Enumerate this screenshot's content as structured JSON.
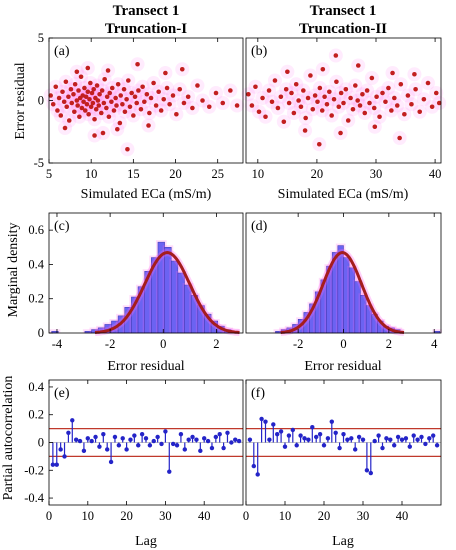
{
  "chart_data": [
    {
      "id": "a",
      "type": "scatter",
      "panel_label": "(a)",
      "title": [
        "Transect 1",
        "Truncation-I"
      ],
      "xlabel": "Simulated ECa (mS/m)",
      "ylabel": "Error residual",
      "xlim": [
        5,
        28
      ],
      "ylim": [
        -5,
        5
      ],
      "xticks": [
        "5",
        "10",
        "15",
        "20",
        "25"
      ],
      "xtick_values": [
        5,
        10,
        15,
        20,
        25
      ],
      "yticks": [
        "5",
        "0",
        "-5"
      ],
      "ytick_values": [
        5,
        0,
        -5
      ],
      "points": [
        [
          5.2,
          0.4
        ],
        [
          5.5,
          -0.3
        ],
        [
          5.8,
          1.1
        ],
        [
          6.0,
          -0.8
        ],
        [
          6.2,
          0.2
        ],
        [
          6.4,
          -1.2
        ],
        [
          6.6,
          0.7
        ],
        [
          6.8,
          -0.1
        ],
        [
          7.0,
          1.5
        ],
        [
          7.1,
          -0.5
        ],
        [
          7.3,
          0.3
        ],
        [
          7.4,
          -1.6
        ],
        [
          7.6,
          0.9
        ],
        [
          7.7,
          -0.2
        ],
        [
          7.9,
          0.5
        ],
        [
          8.0,
          -0.9
        ],
        [
          8.1,
          1.3
        ],
        [
          8.3,
          0.0
        ],
        [
          8.4,
          -0.4
        ],
        [
          8.5,
          0.8
        ],
        [
          8.6,
          -1.3
        ],
        [
          8.7,
          0.2
        ],
        [
          8.8,
          1.9
        ],
        [
          8.9,
          -0.6
        ],
        [
          9.0,
          0.4
        ],
        [
          9.1,
          -0.1
        ],
        [
          9.2,
          1.0
        ],
        [
          9.3,
          -0.8
        ],
        [
          9.4,
          0.3
        ],
        [
          9.5,
          -0.3
        ],
        [
          9.6,
          0.7
        ],
        [
          9.7,
          -1.1
        ],
        [
          9.8,
          0.1
        ],
        [
          9.9,
          1.4
        ],
        [
          10.0,
          -0.5
        ],
        [
          10.1,
          0.6
        ],
        [
          10.2,
          -0.2
        ],
        [
          10.3,
          0.9
        ],
        [
          10.4,
          -1.5
        ],
        [
          10.5,
          0.2
        ],
        [
          10.6,
          -0.7
        ],
        [
          10.7,
          1.2
        ],
        [
          10.8,
          0.0
        ],
        [
          10.9,
          -0.4
        ],
        [
          11.0,
          0.5
        ],
        [
          11.2,
          -1.0
        ],
        [
          11.3,
          0.8
        ],
        [
          11.5,
          -0.2
        ],
        [
          11.6,
          1.7
        ],
        [
          11.8,
          -0.6
        ],
        [
          11.9,
          0.3
        ],
        [
          12.1,
          -1.3
        ],
        [
          12.2,
          0.6
        ],
        [
          12.4,
          -0.1
        ],
        [
          12.5,
          1.0
        ],
        [
          12.7,
          -0.8
        ],
        [
          12.9,
          0.2
        ],
        [
          13.0,
          -0.4
        ],
        [
          13.2,
          1.3
        ],
        [
          13.4,
          -1.8
        ],
        [
          13.5,
          0.4
        ],
        [
          13.7,
          -0.3
        ],
        [
          13.9,
          0.9
        ],
        [
          14.0,
          -0.9
        ],
        [
          14.2,
          0.1
        ],
        [
          14.4,
          1.6
        ],
        [
          14.6,
          -0.5
        ],
        [
          14.8,
          0.6
        ],
        [
          15.0,
          -1.2
        ],
        [
          15.2,
          0.3
        ],
        [
          15.4,
          -0.2
        ],
        [
          15.6,
          0.8
        ],
        [
          15.9,
          -0.7
        ],
        [
          16.1,
          1.1
        ],
        [
          16.3,
          -0.1
        ],
        [
          16.6,
          0.5
        ],
        [
          16.9,
          -1.0
        ],
        [
          17.1,
          0.2
        ],
        [
          17.4,
          1.4
        ],
        [
          17.7,
          -0.4
        ],
        [
          18.0,
          0.7
        ],
        [
          18.3,
          -0.8
        ],
        [
          18.6,
          0.1
        ],
        [
          19.0,
          1.0
        ],
        [
          19.3,
          -0.3
        ],
        [
          19.7,
          0.4
        ],
        [
          20.1,
          -1.1
        ],
        [
          20.5,
          0.9
        ],
        [
          21.0,
          -0.2
        ],
        [
          21.5,
          0.3
        ],
        [
          22.0,
          -0.6
        ],
        [
          22.6,
          1.2
        ],
        [
          23.2,
          0.0
        ],
        [
          24.0,
          -0.5
        ],
        [
          24.8,
          0.6
        ],
        [
          25.6,
          -0.2
        ],
        [
          26.5,
          0.8
        ],
        [
          27.3,
          -0.4
        ],
        [
          13.1,
          -2.3
        ],
        [
          9.6,
          2.6
        ],
        [
          15.5,
          2.9
        ],
        [
          11.4,
          -2.6
        ],
        [
          6.9,
          -2.2
        ],
        [
          18.8,
          2.2
        ],
        [
          8.3,
          2.3
        ],
        [
          16.8,
          -2.0
        ],
        [
          12.0,
          2.4
        ],
        [
          10.4,
          -2.8
        ],
        [
          14.3,
          -3.9
        ],
        [
          20.8,
          2.5
        ]
      ]
    },
    {
      "id": "b",
      "type": "scatter",
      "panel_label": "(b)",
      "title": [
        "Transect 1",
        "Truncation-II"
      ],
      "xlabel": "Simulated ECa (mS/m)",
      "ylabel": "",
      "xlim": [
        8,
        41
      ],
      "ylim": [
        -5,
        5
      ],
      "xticks": [
        "10",
        "20",
        "30",
        "40"
      ],
      "xtick_values": [
        10,
        20,
        30,
        40
      ],
      "yticks": [],
      "ytick_values": [],
      "points": [
        [
          8.4,
          0.5
        ],
        [
          9.0,
          -0.4
        ],
        [
          9.6,
          1.1
        ],
        [
          10.2,
          -0.9
        ],
        [
          10.8,
          0.2
        ],
        [
          11.3,
          -1.3
        ],
        [
          11.9,
          0.8
        ],
        [
          12.4,
          -0.1
        ],
        [
          12.9,
          1.6
        ],
        [
          13.4,
          -0.6
        ],
        [
          13.9,
          0.3
        ],
        [
          14.4,
          -1.7
        ],
        [
          14.8,
          0.9
        ],
        [
          15.3,
          -0.2
        ],
        [
          15.7,
          0.6
        ],
        [
          16.1,
          -1.0
        ],
        [
          16.5,
          1.3
        ],
        [
          16.9,
          0.0
        ],
        [
          17.3,
          -0.5
        ],
        [
          17.7,
          0.8
        ],
        [
          18.1,
          -1.4
        ],
        [
          18.5,
          0.2
        ],
        [
          18.9,
          2.0
        ],
        [
          19.3,
          -0.7
        ],
        [
          19.7,
          0.4
        ],
        [
          20.1,
          -0.1
        ],
        [
          20.5,
          1.0
        ],
        [
          20.9,
          -0.8
        ],
        [
          21.3,
          0.3
        ],
        [
          21.7,
          -0.3
        ],
        [
          22.1,
          0.7
        ],
        [
          22.5,
          -1.2
        ],
        [
          22.9,
          0.1
        ],
        [
          23.3,
          1.5
        ],
        [
          23.7,
          -0.5
        ],
        [
          24.1,
          0.6
        ],
        [
          24.5,
          -0.2
        ],
        [
          24.9,
          0.9
        ],
        [
          25.3,
          -1.6
        ],
        [
          25.7,
          0.2
        ],
        [
          26.1,
          -0.7
        ],
        [
          26.5,
          1.2
        ],
        [
          26.9,
          0.0
        ],
        [
          27.3,
          -0.4
        ],
        [
          27.7,
          0.5
        ],
        [
          28.1,
          -1.0
        ],
        [
          28.5,
          0.8
        ],
        [
          28.9,
          -0.2
        ],
        [
          29.3,
          1.8
        ],
        [
          29.7,
          -0.6
        ],
        [
          30.1,
          0.3
        ],
        [
          30.6,
          -1.3
        ],
        [
          31.1,
          0.6
        ],
        [
          31.6,
          -0.1
        ],
        [
          32.1,
          1.0
        ],
        [
          32.6,
          -0.8
        ],
        [
          33.1,
          0.2
        ],
        [
          33.6,
          -0.4
        ],
        [
          34.2,
          1.3
        ],
        [
          34.8,
          -1.1
        ],
        [
          35.4,
          0.4
        ],
        [
          36.0,
          -0.3
        ],
        [
          36.7,
          0.9
        ],
        [
          37.4,
          -0.9
        ],
        [
          38.1,
          0.1
        ],
        [
          38.8,
          1.4
        ],
        [
          39.5,
          -0.5
        ],
        [
          40.2,
          0.6
        ],
        [
          40.7,
          -0.2
        ],
        [
          15.0,
          2.3
        ],
        [
          18.0,
          -2.4
        ],
        [
          21.0,
          2.5
        ],
        [
          24.0,
          -2.6
        ],
        [
          27.0,
          2.8
        ],
        [
          29.8,
          -2.1
        ],
        [
          32.8,
          2.2
        ],
        [
          23.2,
          3.6
        ],
        [
          20.4,
          -3.5
        ],
        [
          34.0,
          -3.0
        ],
        [
          36.5,
          2.1
        ]
      ]
    },
    {
      "id": "c",
      "type": "bar",
      "panel_label": "(c)",
      "xlabel": "Error residual",
      "ylabel": "Marginal density",
      "xlim": [
        -4.3,
        3.0
      ],
      "ylim": [
        0,
        0.7
      ],
      "xticks": [
        "-4",
        "-2",
        "0",
        "2"
      ],
      "xtick_values": [
        -4,
        -2,
        0,
        2
      ],
      "yticks": [
        "0.6",
        "0.4",
        "0.2",
        "0"
      ],
      "ytick_values": [
        0.6,
        0.4,
        0.2,
        0
      ],
      "bin_edges": [
        -4.2,
        -3.95,
        -3.7,
        -3.45,
        -3.2,
        -2.95,
        -2.7,
        -2.45,
        -2.2,
        -1.95,
        -1.7,
        -1.45,
        -1.2,
        -0.95,
        -0.7,
        -0.45,
        -0.2,
        0.05,
        0.3,
        0.55,
        0.8,
        1.05,
        1.3,
        1.55,
        1.8,
        2.05,
        2.3,
        2.55,
        2.8
      ],
      "values": [
        0.01,
        0,
        0,
        0,
        0,
        0.01,
        0.02,
        0.03,
        0.05,
        0.07,
        0.1,
        0.15,
        0.21,
        0.27,
        0.36,
        0.44,
        0.53,
        0.5,
        0.42,
        0.35,
        0.28,
        0.22,
        0.16,
        0.11,
        0.07,
        0.04,
        0.02,
        0.01
      ],
      "curve": {
        "mu": 0.15,
        "sigma": 0.85
      }
    },
    {
      "id": "d",
      "type": "bar",
      "panel_label": "(d)",
      "xlabel": "Error residual",
      "ylabel": "",
      "xlim": [
        -4.3,
        4.3
      ],
      "ylim": [
        0,
        0.7
      ],
      "xticks": [
        "-2",
        "0",
        "2",
        "4"
      ],
      "xtick_values": [
        -2,
        0,
        2,
        4
      ],
      "yticks": [],
      "ytick_values": [],
      "bin_edges": [
        -3.0,
        -2.75,
        -2.5,
        -2.25,
        -2.0,
        -1.75,
        -1.5,
        -1.25,
        -1.0,
        -0.75,
        -0.5,
        -0.25,
        0.0,
        0.25,
        0.5,
        0.75,
        1.0,
        1.25,
        1.5,
        1.75,
        2.0,
        2.25,
        2.5,
        2.75,
        3.0,
        3.25,
        3.5,
        3.75,
        4.0,
        4.25
      ],
      "values": [
        0.01,
        0.02,
        0.03,
        0.05,
        0.08,
        0.12,
        0.17,
        0.24,
        0.31,
        0.39,
        0.47,
        0.51,
        0.44,
        0.38,
        0.3,
        0.22,
        0.16,
        0.11,
        0.07,
        0.04,
        0.03,
        0.02,
        0,
        0,
        0,
        0,
        0,
        0,
        0.01
      ],
      "curve": {
        "mu": -0.05,
        "sigma": 0.85
      }
    },
    {
      "id": "e",
      "type": "stem",
      "panel_label": "(e)",
      "xlabel": "Lag",
      "ylabel": "Partial autocorrelation",
      "xlim": [
        0,
        50
      ],
      "ylim": [
        -0.45,
        0.45
      ],
      "xticks": [
        "0",
        "10",
        "20",
        "30",
        "40"
      ],
      "xtick_values": [
        0,
        10,
        20,
        30,
        40
      ],
      "yticks": [
        "0.4",
        "0.2",
        "0",
        "-0.2",
        "-0.4"
      ],
      "ytick_values": [
        0.4,
        0.2,
        0,
        -0.2,
        -0.4
      ],
      "bounds": [
        0.1,
        -0.1
      ],
      "values": [
        -0.16,
        -0.16,
        -0.05,
        -0.1,
        0.07,
        0.16,
        0.02,
        0.01,
        -0.06,
        0.03,
        0.01,
        0.04,
        -0.03,
        0.06,
        -0.05,
        -0.14,
        0.04,
        -0.02,
        0.03,
        -0.05,
        0.02,
        0.05,
        -0.02,
        0.06,
        0.03,
        -0.02,
        0.01,
        0.04,
        -0.01,
        0.08,
        -0.21,
        -0.01,
        -0.02,
        0.06,
        -0.05,
        0.02,
        0.04,
        0.02,
        -0.06,
        0.03,
        0.01,
        -0.04,
        0.04,
        0.06,
        -0.04,
        0.07,
        0,
        0.02,
        0.01
      ]
    },
    {
      "id": "f",
      "type": "stem",
      "panel_label": "(f)",
      "xlabel": "Lag",
      "ylabel": "",
      "xlim": [
        0,
        50
      ],
      "ylim": [
        -0.45,
        0.45
      ],
      "xticks": [
        "0",
        "10",
        "20",
        "30",
        "40"
      ],
      "xtick_values": [
        0,
        10,
        20,
        30,
        40
      ],
      "yticks": [],
      "ytick_values": [],
      "bounds": [
        0.1,
        -0.1
      ],
      "values": [
        0.02,
        -0.17,
        -0.23,
        0.17,
        0.15,
        0.02,
        0.13,
        0.06,
        0.08,
        -0.03,
        0.05,
        0.09,
        -0.02,
        0.05,
        0.03,
        0.02,
        0.11,
        0.04,
        0.06,
        -0.02,
        0.03,
        0.15,
        0.07,
        -0.04,
        0.06,
        0.02,
        0.03,
        -0.05,
        0.04,
        0.02,
        -0.2,
        -0.22,
        0.01,
        0.05,
        -0.04,
        0.03,
        0.02,
        -0.02,
        0.04,
        0.02,
        0.03,
        -0.03,
        0.05,
        0.02,
        0.04,
        -0.01,
        0.03,
        0.05,
        -0.02
      ]
    }
  ]
}
